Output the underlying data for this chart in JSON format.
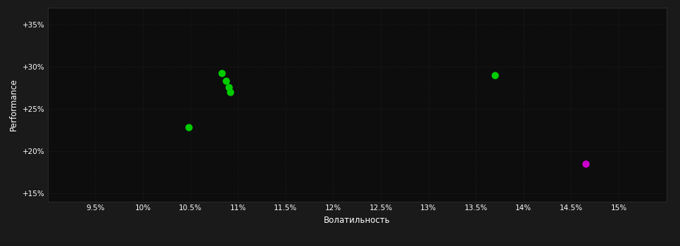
{
  "background_color": "#1a1a1a",
  "plot_bg_color": "#0d0d0d",
  "grid_color": "#2a2a2a",
  "text_color": "#ffffff",
  "xlabel": "Волатильность",
  "ylabel": "Performance",
  "xlim": [
    0.09,
    0.155
  ],
  "ylim": [
    0.14,
    0.37
  ],
  "xticks": [
    0.095,
    0.1,
    0.105,
    0.11,
    0.115,
    0.12,
    0.125,
    0.13,
    0.135,
    0.14,
    0.145,
    0.15
  ],
  "xtick_labels": [
    "9.5%",
    "10%",
    "10.5%",
    "11%",
    "11.5%",
    "12%",
    "12.5%",
    "13%",
    "13.5%",
    "14%",
    "14.5%",
    "15%"
  ],
  "yticks": [
    0.15,
    0.2,
    0.25,
    0.3,
    0.35
  ],
  "ytick_labels": [
    "+15%",
    "+20%",
    "+25%",
    "+30%",
    "+35%"
  ],
  "green_points": [
    [
      0.1083,
      0.292
    ],
    [
      0.1087,
      0.283
    ],
    [
      0.109,
      0.276
    ],
    [
      0.1092,
      0.27
    ],
    [
      0.1048,
      0.228
    ],
    [
      0.137,
      0.29
    ]
  ],
  "magenta_points": [
    [
      0.1465,
      0.185
    ]
  ],
  "green_color": "#00cc00",
  "magenta_color": "#cc00cc",
  "marker_size": 55
}
